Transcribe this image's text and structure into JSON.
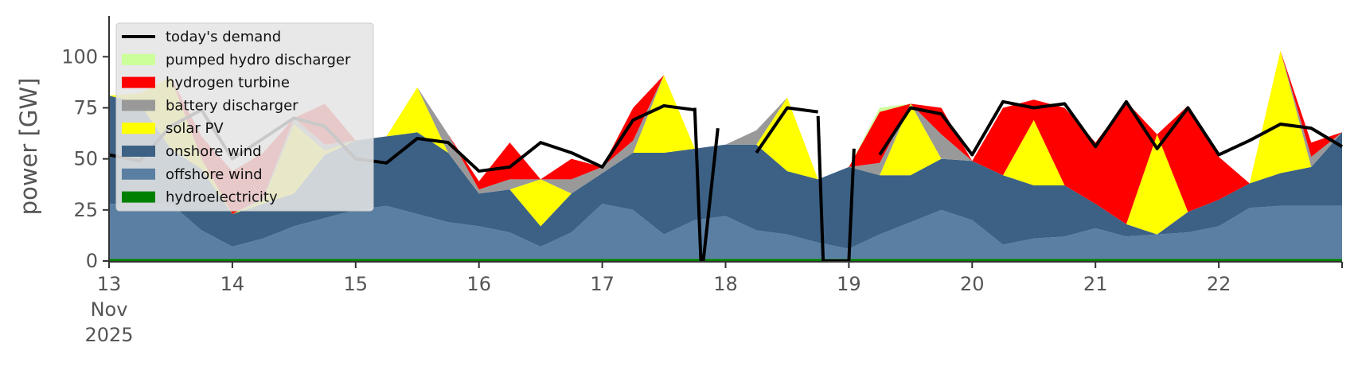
{
  "chart_data": {
    "type": "area",
    "stacked": true,
    "ylabel": "power [GW]",
    "ylim": [
      0,
      120
    ],
    "y_ticks": [
      0,
      25,
      50,
      75,
      100
    ],
    "x_range_days": [
      "2025-11-13",
      "2025-11-23"
    ],
    "x_ticks": [
      {
        "date": "2025-11-13",
        "lines": [
          "13",
          "Nov",
          "2025"
        ]
      },
      {
        "date": "2025-11-14",
        "lines": [
          "14"
        ]
      },
      {
        "date": "2025-11-15",
        "lines": [
          "15"
        ]
      },
      {
        "date": "2025-11-16",
        "lines": [
          "16"
        ]
      },
      {
        "date": "2025-11-17",
        "lines": [
          "17"
        ]
      },
      {
        "date": "2025-11-18",
        "lines": [
          "18"
        ]
      },
      {
        "date": "2025-11-19",
        "lines": [
          "19"
        ]
      },
      {
        "date": "2025-11-20",
        "lines": [
          "20"
        ]
      },
      {
        "date": "2025-11-21",
        "lines": [
          "21"
        ]
      },
      {
        "date": "2025-11-22",
        "lines": [
          "22"
        ]
      }
    ],
    "legend_position": "top-left",
    "x": [
      "2025-11-13 00:00",
      "2025-11-13 06:00",
      "2025-11-13 12:00",
      "2025-11-13 18:00",
      "2025-11-14 00:00",
      "2025-11-14 06:00",
      "2025-11-14 12:00",
      "2025-11-14 18:00",
      "2025-11-15 00:00",
      "2025-11-15 06:00",
      "2025-11-15 12:00",
      "2025-11-15 18:00",
      "2025-11-16 00:00",
      "2025-11-16 06:00",
      "2025-11-16 12:00",
      "2025-11-16 18:00",
      "2025-11-17 00:00",
      "2025-11-17 06:00",
      "2025-11-17 12:00",
      "2025-11-17 18:00",
      "2025-11-18 00:00",
      "2025-11-18 06:00",
      "2025-11-18 12:00",
      "2025-11-18 18:00",
      "2025-11-19 00:00",
      "2025-11-19 06:00",
      "2025-11-19 12:00",
      "2025-11-19 18:00",
      "2025-11-20 00:00",
      "2025-11-20 06:00",
      "2025-11-20 12:00",
      "2025-11-20 18:00",
      "2025-11-21 00:00",
      "2025-11-21 06:00",
      "2025-11-21 12:00",
      "2025-11-21 18:00",
      "2025-11-22 00:00",
      "2025-11-22 06:00",
      "2025-11-22 12:00",
      "2025-11-22 18:00",
      "2025-11-23 00:00"
    ],
    "series": [
      {
        "name": "hydroelectricity",
        "color": "#008000",
        "values": [
          1,
          1,
          1,
          1,
          1,
          1,
          1,
          1,
          1,
          1,
          1,
          1,
          1,
          1,
          1,
          1,
          1,
          1,
          1,
          1,
          1,
          1,
          1,
          1,
          1,
          1,
          1,
          1,
          1,
          1,
          1,
          1,
          1,
          1,
          1,
          1,
          1,
          1,
          1,
          1,
          1
        ]
      },
      {
        "name": "offshore wind",
        "color": "#5a7fa3",
        "values": [
          27,
          27,
          27,
          14,
          6,
          10,
          16,
          20,
          24,
          26,
          22,
          18,
          16,
          13,
          6,
          13,
          27,
          24,
          12,
          19,
          21,
          14,
          12,
          8,
          5,
          12,
          18,
          24,
          19,
          7,
          10,
          11,
          15,
          11,
          12,
          13,
          16,
          25,
          26,
          26,
          26
        ]
      },
      {
        "name": "onshore wind",
        "color": "#3c6185",
        "values": [
          53,
          49,
          27,
          30,
          16,
          17,
          16,
          31,
          34,
          34,
          40,
          34,
          16,
          21,
          10,
          19,
          15,
          28,
          40,
          35,
          35,
          42,
          31,
          31,
          40,
          29,
          23,
          25,
          29,
          34,
          26,
          25,
          12,
          6,
          0,
          10,
          13,
          12,
          16,
          19,
          36
        ]
      },
      {
        "name": "solar PV",
        "color": "#ffff00",
        "values": [
          0,
          5,
          35,
          5,
          0,
          2,
          34,
          2,
          0,
          0,
          22,
          0,
          0,
          0,
          23,
          0,
          0,
          0,
          38,
          0,
          0,
          0,
          36,
          0,
          0,
          0,
          35,
          0,
          0,
          0,
          32,
          0,
          0,
          0,
          49,
          0,
          0,
          0,
          60,
          0,
          0
        ]
      },
      {
        "name": "battery discharger",
        "color": "#999999",
        "values": [
          0,
          0,
          0,
          0,
          0,
          1,
          3,
          3,
          0,
          0,
          0,
          9,
          2,
          5,
          0,
          7,
          3,
          6,
          0,
          0,
          0,
          7,
          0,
          0,
          0,
          6,
          0,
          12,
          0,
          0,
          0,
          0,
          0,
          0,
          0,
          0,
          0,
          0,
          0,
          5,
          0
        ]
      },
      {
        "name": "hydrogen turbine",
        "color": "#ff0000",
        "values": [
          0,
          0,
          0,
          11,
          21,
          22,
          0,
          20,
          0,
          0,
          0,
          0,
          4,
          18,
          0,
          10,
          0,
          16,
          0,
          0,
          0,
          0,
          0,
          0,
          0,
          25,
          0,
          13,
          0,
          33,
          10,
          38,
          30,
          60,
          0,
          52,
          21,
          0,
          0,
          7,
          0
        ]
      },
      {
        "name": "pumped hydro discharger",
        "color": "#ccff99",
        "values": [
          0,
          0,
          0,
          0,
          0,
          0,
          0,
          0,
          0,
          0,
          0,
          0,
          0,
          0,
          0,
          0,
          0,
          0,
          0,
          0,
          0,
          0,
          0,
          0,
          0,
          2,
          0,
          0,
          0,
          0,
          0,
          0,
          0,
          0,
          0,
          0,
          0,
          0,
          0,
          0,
          0
        ]
      }
    ],
    "demand": {
      "name": "today's demand",
      "color": "#000000",
      "values": [
        52,
        49,
        66,
        74,
        50,
        60,
        70,
        66,
        50,
        48,
        60,
        58,
        44,
        46,
        58,
        53,
        46,
        69,
        76,
        74,
        null,
        53,
        75,
        73,
        null,
        52,
        75,
        72,
        52,
        78,
        75,
        77,
        56,
        78,
        55,
        75,
        52,
        59,
        67,
        65,
        56
      ],
      "gaps": [
        {
          "x": [
            "2025-11-17 18:00",
            "2025-11-17 19:12",
            "2025-11-17 19:40",
            "2025-11-17 22:30"
          ],
          "y": [
            75,
            0,
            0,
            65
          ]
        },
        {
          "x": [
            "2025-11-18 18:00",
            "2025-11-18 19:00",
            "2025-11-19 00:00",
            "2025-11-19 01:00"
          ],
          "y": [
            71,
            0,
            0,
            55
          ]
        }
      ]
    },
    "legend_order": [
      "today's demand",
      "pumped hydro discharger",
      "hydrogen turbine",
      "battery discharger",
      "solar PV",
      "onshore wind",
      "offshore wind",
      "hydroelectricity"
    ]
  }
}
